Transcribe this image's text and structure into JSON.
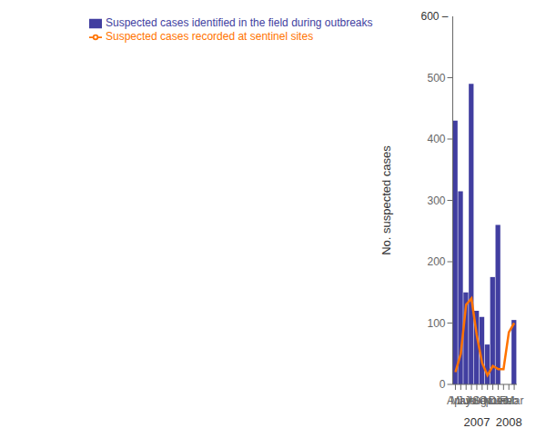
{
  "chart_data": {
    "type": "bar",
    "categories": [
      "Apr",
      "May",
      "Jun",
      "Jul",
      "Aug",
      "Sep",
      "Oct",
      "Nov",
      "Dec",
      "Jan",
      "Feb",
      "Mar"
    ],
    "series": [
      {
        "name": "Suspected cases identified in the field during outbreaks",
        "type": "bar",
        "color": "#413ea0",
        "values": [
          430,
          315,
          150,
          490,
          120,
          110,
          65,
          175,
          260,
          0,
          0,
          105
        ]
      },
      {
        "name": "Suspected cases recorded at sentinel sites",
        "type": "line",
        "color": "#ff7300",
        "values": [
          20,
          50,
          130,
          140,
          80,
          35,
          15,
          30,
          25,
          25,
          85,
          100
        ]
      }
    ],
    "ylabel": "No. suspected cases",
    "ylim": [
      0,
      600
    ],
    "yticks": [
      0,
      100,
      200,
      300,
      400,
      500
    ],
    "annotations": [
      "600 –",
      "2007",
      "2008"
    ],
    "legend": "top",
    "grid": false
  }
}
